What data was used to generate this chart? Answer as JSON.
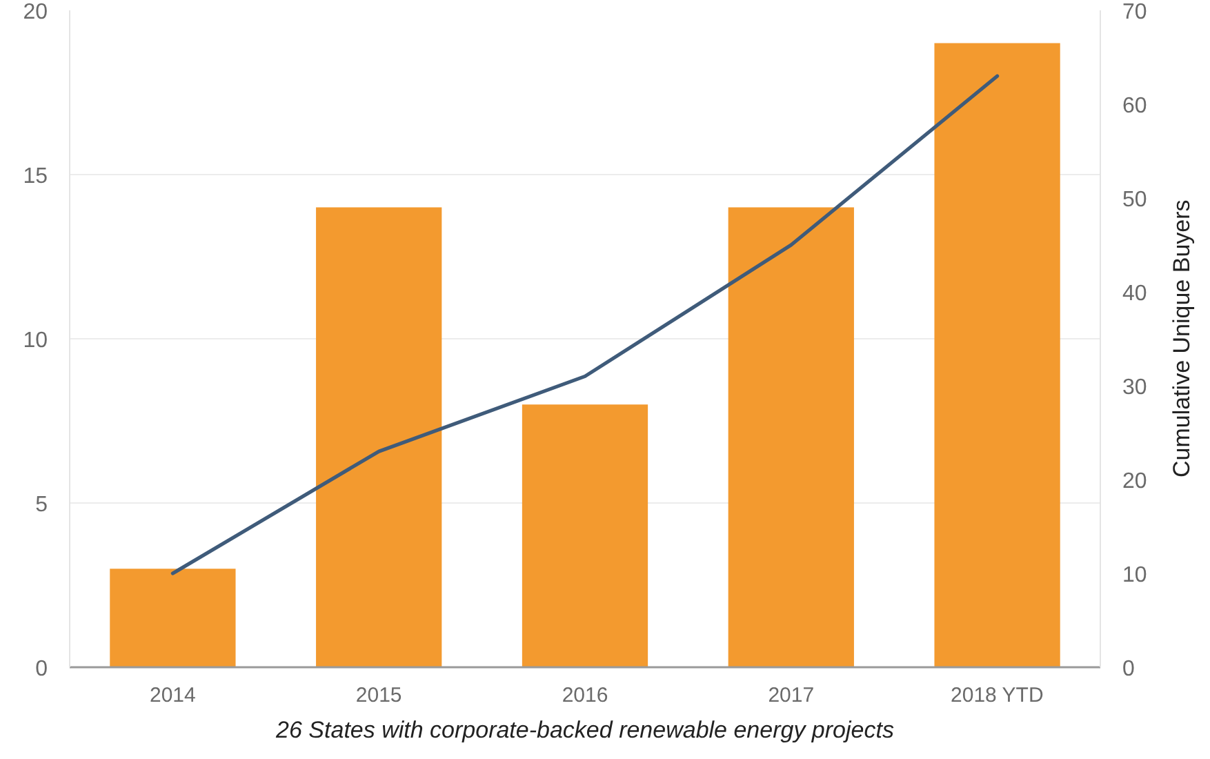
{
  "chart_data": {
    "type": "bar",
    "categories": [
      "2014",
      "2015",
      "2016",
      "2017",
      "2018 YTD"
    ],
    "series": [
      {
        "color": "#f39a2f",
        "values": [
          3,
          14,
          8,
          14,
          19
        ]
      },
      {
        "type": "line",
        "axis": "y2",
        "color": "#3f5b7a",
        "line_style": "solid",
        "values": [
          10,
          23,
          31,
          45,
          63
        ]
      }
    ],
    "ylim": [
      0,
      20
    ],
    "yticks": [
      0,
      5,
      10,
      15,
      20
    ],
    "y2lim": [
      0,
      70
    ],
    "y2ticks": [
      0,
      10,
      20,
      30,
      40,
      50,
      60,
      70
    ],
    "y2label": "Cumulative Unique Buyers",
    "grid": "y",
    "annotations": [
      "26 States with corporate-backed renewable energy projects"
    ]
  }
}
